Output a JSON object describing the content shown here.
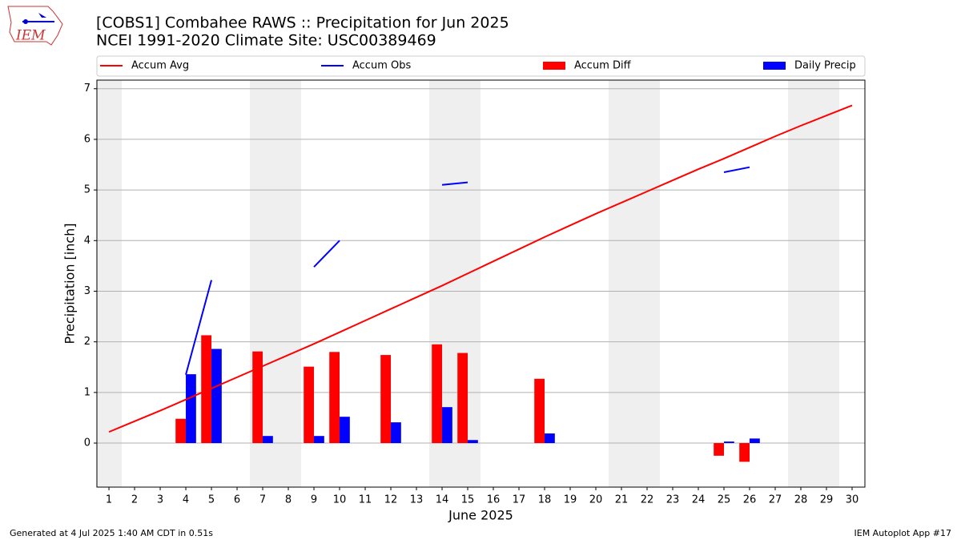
{
  "logo_text": "IEM",
  "footer_left": "Generated at 4 Jul 2025 1:40 AM CDT in 0.51s",
  "footer_right": "IEM Autoplot App #17",
  "chart_data": {
    "type": "combo",
    "title": "[COBS1] Combahee RAWS :: Precipitation for Jun 2025",
    "subtitle": "NCEI 1991-2020 Climate Site: USC00389469",
    "x_label": "June 2025",
    "y_label": "Precipitation [inch]",
    "x": [
      1,
      2,
      3,
      4,
      5,
      6,
      7,
      8,
      9,
      10,
      11,
      12,
      13,
      14,
      15,
      16,
      17,
      18,
      19,
      20,
      21,
      22,
      23,
      24,
      25,
      26,
      27,
      28,
      29,
      30
    ],
    "xlim": [
      0.53,
      30.5
    ],
    "xticks": [
      1,
      2,
      3,
      4,
      5,
      6,
      7,
      8,
      9,
      10,
      11,
      12,
      13,
      14,
      15,
      16,
      17,
      18,
      19,
      20,
      21,
      22,
      23,
      24,
      25,
      26,
      27,
      28,
      29,
      30
    ],
    "ylim": [
      -0.87,
      7.17
    ],
    "yticks": [
      0,
      1,
      2,
      3,
      4,
      5,
      6,
      7
    ],
    "grid": true,
    "shaded_spans": [
      [
        0.5,
        1.5
      ],
      [
        6.5,
        8.5
      ],
      [
        13.5,
        15.5
      ],
      [
        20.5,
        22.5
      ],
      [
        27.5,
        29.5
      ]
    ],
    "series": [
      {
        "name": "Accum Avg",
        "type": "line",
        "color": "#ff0000",
        "values": [
          0.22,
          0.43,
          0.64,
          0.86,
          1.08,
          1.3,
          1.52,
          1.74,
          1.96,
          2.19,
          2.42,
          2.65,
          2.88,
          3.11,
          3.35,
          3.59,
          3.83,
          4.07,
          4.3,
          4.53,
          4.75,
          4.97,
          5.19,
          5.41,
          5.62,
          5.84,
          6.06,
          6.27,
          6.47,
          6.67
        ]
      },
      {
        "name": "Accum Obs",
        "type": "line",
        "color": "#0000ff",
        "values": [
          null,
          null,
          null,
          1.35,
          3.22,
          null,
          null,
          null,
          3.48,
          4.0,
          null,
          null,
          null,
          5.1,
          5.15,
          null,
          null,
          null,
          null,
          null,
          null,
          null,
          null,
          null,
          5.35,
          5.45,
          null,
          null,
          null,
          null
        ]
      },
      {
        "name": "Accum Diff",
        "type": "bar",
        "offset": -1,
        "color": "#ff0000",
        "values": [
          null,
          null,
          null,
          0.48,
          2.13,
          null,
          1.81,
          null,
          1.51,
          1.8,
          null,
          1.74,
          null,
          1.95,
          1.78,
          null,
          null,
          1.27,
          null,
          null,
          null,
          null,
          null,
          null,
          -0.25,
          -0.37,
          null,
          null,
          null,
          null
        ]
      },
      {
        "name": "Daily Precip",
        "type": "bar",
        "offset": 0,
        "color": "#0000ff",
        "values": [
          null,
          null,
          null,
          1.36,
          1.86,
          null,
          0.14,
          null,
          0.14,
          0.52,
          null,
          0.41,
          null,
          0.71,
          0.06,
          null,
          null,
          0.19,
          null,
          null,
          null,
          null,
          null,
          null,
          0.03,
          0.09,
          null,
          null,
          null,
          null
        ]
      }
    ]
  }
}
